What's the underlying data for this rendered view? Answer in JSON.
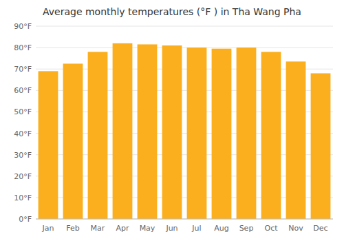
{
  "chart_data": {
    "type": "bar",
    "title": "Average monthly temperatures (°F ) in Tha Wang Pha",
    "categories": [
      "Jan",
      "Feb",
      "Mar",
      "Apr",
      "May",
      "Jun",
      "Jul",
      "Aug",
      "Sep",
      "Oct",
      "Nov",
      "Dec"
    ],
    "values": [
      69,
      72.5,
      78,
      82,
      81.5,
      81,
      80,
      79.5,
      80,
      78,
      73.5,
      68
    ],
    "color": "#FBAF1E",
    "ylim": [
      0,
      90
    ],
    "yticks": [
      {
        "value": 0,
        "label": "0°F"
      },
      {
        "value": 10,
        "label": "10°F"
      },
      {
        "value": 20,
        "label": "20°F"
      },
      {
        "value": 30,
        "label": "30°F"
      },
      {
        "value": 40,
        "label": "40°F"
      },
      {
        "value": 50,
        "label": "50°F"
      },
      {
        "value": 60,
        "label": "60°F"
      },
      {
        "value": 70,
        "label": "70°F"
      },
      {
        "value": 80,
        "label": "80°F"
      },
      {
        "value": 90,
        "label": "90°F"
      }
    ],
    "grid": true
  }
}
